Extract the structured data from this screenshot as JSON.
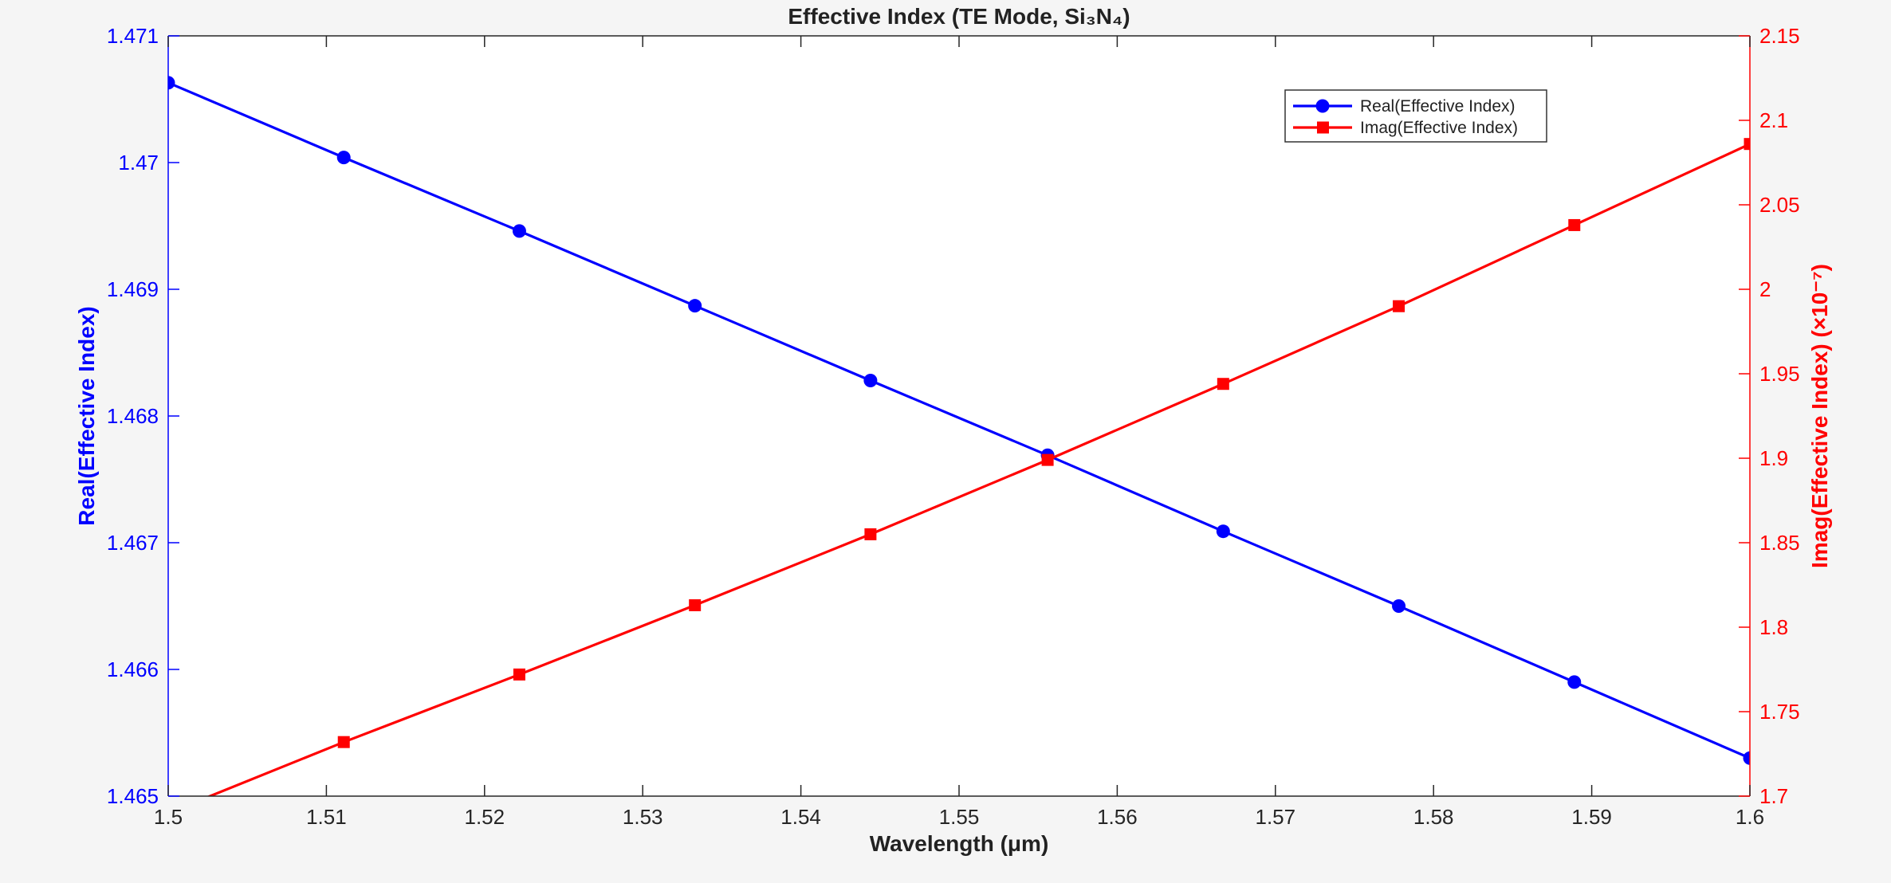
{
  "chart_data": {
    "type": "line",
    "title": "Effective Index (TE Mode, Si₃N₄)",
    "xlabel": "Wavelength (μm)",
    "ylabel_left": "Real(Effective Index)",
    "ylabel_right": "Imag(Effective Index) (×10⁻⁷)",
    "xlim": [
      1.5,
      1.6
    ],
    "ylim_left": [
      1.465,
      1.471
    ],
    "ylim_right": [
      1.7,
      2.15
    ],
    "xticks": [
      "1.5",
      "1.51",
      "1.52",
      "1.53",
      "1.54",
      "1.55",
      "1.56",
      "1.57",
      "1.58",
      "1.59",
      "1.6"
    ],
    "yticks_left": [
      "1.465",
      "1.466",
      "1.467",
      "1.468",
      "1.469",
      "1.47",
      "1.471"
    ],
    "yticks_right": [
      "1.7",
      "1.75",
      "1.8",
      "1.85",
      "1.9",
      "1.95",
      "2",
      "2.05",
      "2.1",
      "2.15"
    ],
    "grid": false,
    "legend_position": "top-right",
    "x": [
      1.5,
      1.5111,
      1.5222,
      1.5333,
      1.5444,
      1.5556,
      1.5667,
      1.5778,
      1.5889,
      1.6
    ],
    "series": [
      {
        "name": "Real(Effective Index)",
        "axis": "left",
        "color": "#0000ff",
        "marker": "circle",
        "values": [
          1.47063,
          1.47004,
          1.46946,
          1.46887,
          1.46828,
          1.46769,
          1.46709,
          1.4665,
          1.4659,
          1.4653
        ]
      },
      {
        "name": "Imag(Effective Index)",
        "axis": "right",
        "color": "#ff0000",
        "marker": "square",
        "values": [
          1.69,
          1.732,
          1.772,
          1.813,
          1.855,
          1.899,
          1.944,
          1.99,
          2.038,
          2.086
        ]
      }
    ]
  }
}
